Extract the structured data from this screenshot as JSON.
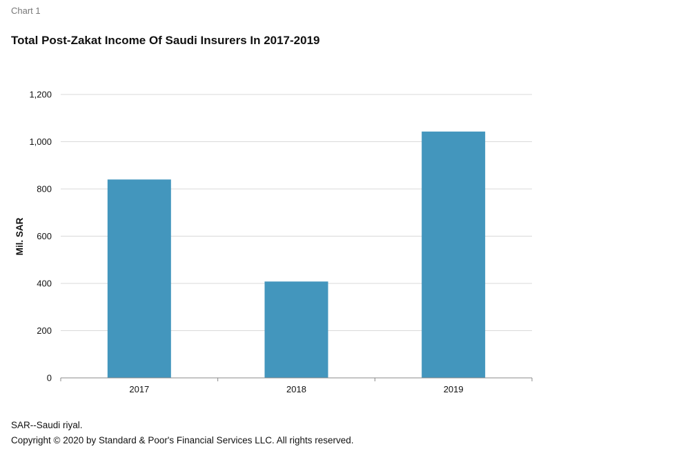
{
  "header": {
    "chart_label": "Chart 1",
    "title": "Total Post-Zakat Income Of Saudi Insurers In 2017-2019"
  },
  "chart_data": {
    "type": "bar",
    "title": "Total Post-Zakat Income Of Saudi Insurers In 2017-2019",
    "categories": [
      "2017",
      "2018",
      "2019"
    ],
    "values": [
      840,
      408,
      1043
    ],
    "xlabel": "",
    "ylabel": "Mil. SAR",
    "ylim": [
      0,
      1200
    ],
    "yticks": [
      0,
      200,
      400,
      600,
      800,
      1000,
      1200
    ],
    "ytick_labels": [
      "0",
      "200",
      "400",
      "600",
      "800",
      "1,000",
      "1,200"
    ],
    "grid": true,
    "legend": "none",
    "bar_color": "#4396bd",
    "grid_color": "#d9d9d9"
  },
  "footer": {
    "note": "SAR--Saudi riyal.",
    "copyright": "Copyright © 2020 by Standard & Poor's Financial Services LLC. All rights reserved."
  }
}
